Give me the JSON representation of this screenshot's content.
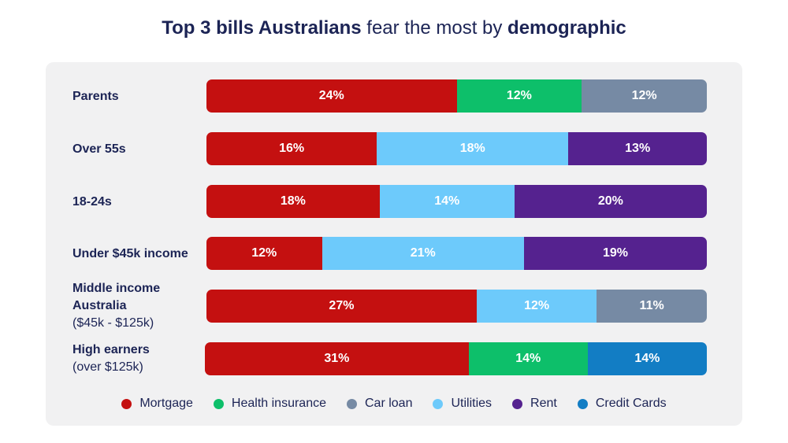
{
  "title": {
    "part1": "Top 3 bills Australians",
    "part2": " fear the most by ",
    "part3": "demographic"
  },
  "colors": {
    "Mortgage": "#c41010",
    "Health insurance": "#0dbf6a",
    "Car loan": "#768aa4",
    "Utilities": "#6dcafb",
    "Rent": "#55228f",
    "Credit Cards": "#127dc4"
  },
  "chart_data": {
    "type": "bar",
    "orientation": "horizontal",
    "stacked": true,
    "title": "Top 3 bills Australians fear the most by demographic",
    "categories": [
      {
        "label": "Parents",
        "sublabel": ""
      },
      {
        "label": "Over 55s",
        "sublabel": ""
      },
      {
        "label": "18-24s",
        "sublabel": ""
      },
      {
        "label": "Under $45k income",
        "sublabel": ""
      },
      {
        "label": "Middle income Australia",
        "sublabel": "($45k - $125k)"
      },
      {
        "label": "High earners",
        "sublabel": "(over $125k)"
      }
    ],
    "rows": [
      [
        {
          "series": "Mortgage",
          "value": 24,
          "label": "24%"
        },
        {
          "series": "Health insurance",
          "value": 12,
          "label": "12%"
        },
        {
          "series": "Car loan",
          "value": 12,
          "label": "12%"
        }
      ],
      [
        {
          "series": "Mortgage",
          "value": 16,
          "label": "16%"
        },
        {
          "series": "Utilities",
          "value": 18,
          "label": "18%"
        },
        {
          "series": "Rent",
          "value": 13,
          "label": "13%"
        }
      ],
      [
        {
          "series": "Mortgage",
          "value": 18,
          "label": "18%"
        },
        {
          "series": "Utilities",
          "value": 14,
          "label": "14%"
        },
        {
          "series": "Rent",
          "value": 20,
          "label": "20%"
        }
      ],
      [
        {
          "series": "Mortgage",
          "value": 12,
          "label": "12%"
        },
        {
          "series": "Utilities",
          "value": 21,
          "label": "21%"
        },
        {
          "series": "Rent",
          "value": 19,
          "label": "19%"
        }
      ],
      [
        {
          "series": "Mortgage",
          "value": 27,
          "label": "27%"
        },
        {
          "series": "Utilities",
          "value": 12,
          "label": "12%"
        },
        {
          "series": "Car loan",
          "value": 11,
          "label": "11%"
        }
      ],
      [
        {
          "series": "Mortgage",
          "value": 31,
          "label": "31%"
        },
        {
          "series": "Health insurance",
          "value": 14,
          "label": "14%"
        },
        {
          "series": "Credit Cards",
          "value": 14,
          "label": "14%"
        }
      ]
    ],
    "legend": [
      "Mortgage",
      "Health insurance",
      "Car loan",
      "Utilities",
      "Rent",
      "Credit Cards"
    ],
    "legend_position": "bottom"
  }
}
